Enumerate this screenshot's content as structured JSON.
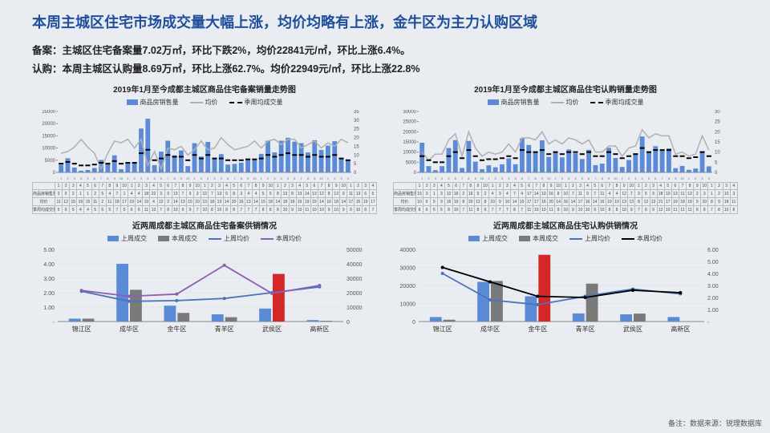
{
  "title": "本周主城区住宅市场成交量大幅上涨，均价均略有上涨，金牛区为主力认购区域",
  "bullets": {
    "b1": "备案：主城区住宅备案量7.02万㎡，环比下跌2%，均价22841元/㎡，环比上涨6.4%。",
    "b2": "认购：本周主城区认购量8.69万㎡，环比上涨62.7%。均价22949元/㎡，环比上涨22.8%"
  },
  "chart1": {
    "title": "2019年1月至今成都主城区商品住宅备案销量走势图",
    "legend": [
      "商品房销售量",
      "均价",
      "季周均成交量"
    ],
    "yleft": {
      "min": 0,
      "max": 25000,
      "ticks": [
        0,
        5000,
        10000,
        15000,
        20000,
        25000
      ]
    },
    "yright": {
      "min": 0,
      "max": 35,
      "ticks": [
        0,
        5,
        10,
        15,
        20,
        25,
        30,
        35
      ]
    },
    "colors": {
      "bar": "#5b8bd6",
      "line1": "#b0b0b0",
      "line2": "#000000"
    },
    "n": 44,
    "bars": [
      3100,
      5800,
      2000,
      700,
      1000,
      1800,
      5100,
      3800,
      7000,
      1300,
      3800,
      4200,
      18000,
      22000,
      3000,
      8500,
      13000,
      7000,
      9000,
      2600,
      12000,
      6500,
      12500,
      5500,
      7500,
      3200,
      3500,
      4000,
      5400,
      5400,
      7600,
      13000,
      8200,
      13000,
      14200,
      12600,
      12000,
      8200,
      13200,
      9200,
      11000,
      12800,
      5800,
      4900
    ],
    "line1": [
      11,
      12,
      14.5,
      19,
      14.5,
      11,
      2,
      11,
      18,
      17,
      19,
      14,
      19,
      4,
      12,
      2,
      14,
      13,
      15,
      10,
      13,
      18,
      13,
      14,
      20,
      16,
      13,
      14,
      15,
      18,
      14,
      18,
      19,
      16,
      19,
      19,
      14,
      16,
      18,
      14,
      17,
      15,
      19,
      17
    ],
    "line2": [
      5,
      6,
      5,
      4,
      4,
      4.5,
      5.5,
      5,
      6.5,
      5,
      5.5,
      5.5,
      11,
      13,
      7,
      8,
      10,
      9,
      9,
      7,
      10,
      8,
      10,
      8,
      8,
      7,
      7,
      7,
      7.5,
      7.5,
      8,
      10,
      9,
      10,
      11,
      10,
      10,
      9,
      10,
      9,
      9,
      10,
      8,
      7
    ],
    "table_rows": [
      "商品房销售量",
      "均价",
      "季周均成交量"
    ]
  },
  "chart2": {
    "title": "2019年1月至今成都主城区商品住宅认购销量走势图",
    "legend": [
      "商品房销售量",
      "均价",
      "季周均成交量"
    ],
    "yleft": {
      "min": 0,
      "max": 30000,
      "ticks": [
        0,
        5000,
        10000,
        15000,
        20000,
        25000,
        30000
      ]
    },
    "yright": {
      "min": 0,
      "max": 30,
      "ticks": [
        0,
        5,
        10,
        15,
        20,
        25,
        30
      ]
    },
    "colors": {
      "bar": "#5b8bd6",
      "line1": "#b0b0b0",
      "line2": "#000000"
    },
    "n": 44,
    "bars": [
      14600,
      3100,
      1100,
      3100,
      12000,
      15900,
      2200,
      15500,
      5300,
      1600,
      3500,
      2500,
      4000,
      6900,
      4000,
      16700,
      13500,
      9800,
      15800,
      7600,
      9900,
      7400,
      11300,
      9400,
      6600,
      11100,
      3600,
      4300,
      12100,
      7100,
      2700,
      6100,
      9400,
      17700,
      10100,
      12900,
      10800,
      11800,
      2100,
      3200,
      1300,
      1900,
      10400,
      3000
    ],
    "line1": [
      10,
      6,
      9,
      9,
      16,
      19,
      8,
      20,
      12,
      8,
      10,
      9,
      10,
      14,
      10,
      17,
      17,
      16,
      20,
      14,
      16,
      14,
      17,
      16,
      14,
      16,
      10,
      10,
      13,
      13,
      8,
      12,
      13,
      21,
      17,
      19,
      18,
      18,
      9,
      10,
      8,
      9,
      18,
      11
    ],
    "line2": [
      8,
      6,
      5,
      5,
      8,
      10,
      7,
      11,
      8,
      6,
      6.5,
      6.5,
      7,
      8,
      7,
      11,
      10,
      10,
      11,
      9,
      10,
      9,
      10,
      10,
      9,
      10,
      8,
      8,
      10,
      9,
      7,
      8,
      9,
      12,
      10,
      11,
      11,
      11,
      8,
      8,
      7,
      7.5,
      10,
      8
    ],
    "table_rows": [
      "商品房销售量",
      "均价",
      "季周均成交量"
    ]
  },
  "chart3": {
    "title": "近两周成都主城区商品住宅备案供销情况",
    "legend": [
      "上周成交",
      "本周成交",
      "上周均价",
      "本周均价"
    ],
    "districts": [
      "锦江区",
      "成华区",
      "金牛区",
      "青羊区",
      "武侯区",
      "高新区"
    ],
    "yleft": {
      "min": 0,
      "max": 5,
      "ticks": [
        0,
        1,
        2,
        3,
        4,
        5
      ],
      "labels": [
        "-",
        "1.00",
        "2.00",
        "3.00",
        "4.00",
        "5.00"
      ]
    },
    "yright": {
      "min": 0,
      "max": 50000,
      "ticks": [
        0,
        10000,
        20000,
        30000,
        40000,
        50000
      ]
    },
    "colors": {
      "bar1": "#5b8bd6",
      "bar2": "#7a7a7a",
      "bar2_hl": "#d62728",
      "line1": "#4a73b8",
      "line2": "#8a5fb5"
    },
    "bar1": [
      0.2,
      4.0,
      1.1,
      0.5,
      0.9,
      0.1
    ],
    "bar2": [
      0.2,
      2.2,
      0.6,
      0.3,
      3.3,
      0.05
    ],
    "highlight_idx": 4,
    "line1": [
      21000,
      14000,
      14500,
      16000,
      20000,
      24000
    ],
    "line2": [
      21500,
      17500,
      19000,
      39000,
      19500,
      25000
    ]
  },
  "chart4": {
    "title": "近两周成都主城区商品住宅认购供销情况",
    "legend": [
      "上周成交",
      "本周成交",
      "上周均价",
      "本周均价"
    ],
    "districts": [
      "锦江区",
      "成华区",
      "金牛区",
      "青羊区",
      "武侯区",
      "高新区"
    ],
    "yleft": {
      "min": 0,
      "max": 40000,
      "ticks": [
        0,
        10000,
        20000,
        30000,
        40000
      ]
    },
    "yright": {
      "min": 0,
      "max": 6,
      "ticks": [
        0,
        1,
        2,
        3,
        4,
        5,
        6
      ],
      "labels": [
        "-",
        "1.00",
        "2.00",
        "3.00",
        "4.00",
        "5.00",
        "6.00"
      ]
    },
    "colors": {
      "bar1": "#5b8bd6",
      "bar2": "#7a7a7a",
      "bar2_hl": "#d62728",
      "line1": "#4a73b8",
      "line2": "#000000"
    },
    "bar1": [
      2500,
      22000,
      14000,
      4500,
      4000,
      2500
    ],
    "bar2": [
      1000,
      22500,
      37000,
      21000,
      4400,
      0
    ],
    "highlight_idx": 2,
    "line1_r": [
      4.0,
      1.8,
      1.4,
      2.1,
      2.7,
      2.3
    ],
    "line2_r": [
      4.5,
      3.3,
      2.1,
      2.0,
      2.6,
      2.4
    ]
  },
  "source": "备注：数据来源：锐理数据库"
}
